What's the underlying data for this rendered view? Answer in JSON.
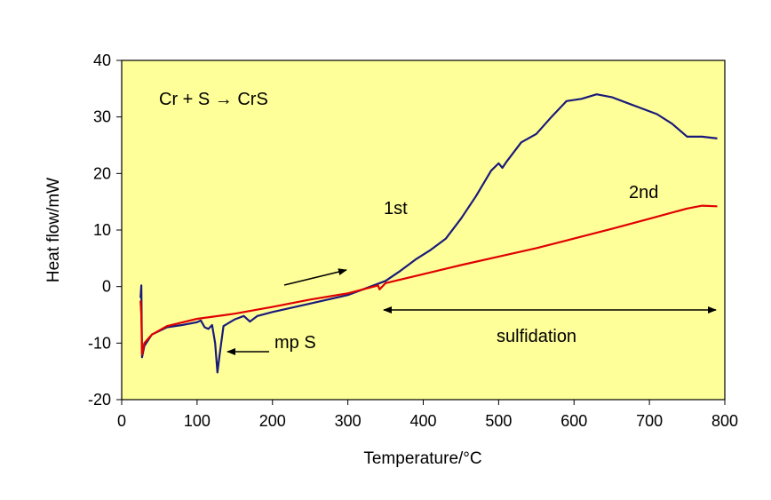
{
  "chart_data": {
    "type": "line",
    "title": "",
    "xlabel": "Temperature/°C",
    "ylabel": "Heat flow/mW",
    "xlim": [
      0,
      800
    ],
    "ylim": [
      -20,
      40
    ],
    "x_ticks": [
      "0",
      "100",
      "200",
      "300",
      "400",
      "500",
      "600",
      "700",
      "800"
    ],
    "y_ticks": [
      "-20",
      "-10",
      "0",
      "10",
      "20",
      "30",
      "40"
    ],
    "grid": false,
    "legend": "none",
    "plot_background": "#FFFF99",
    "series": [
      {
        "label": "1st",
        "color": "#1a1a7a",
        "points": [
          [
            25,
            -2
          ],
          [
            26,
            0.2
          ],
          [
            27,
            -12.5
          ],
          [
            30,
            -10.5
          ],
          [
            40,
            -8.5
          ],
          [
            60,
            -7.2
          ],
          [
            80,
            -6.8
          ],
          [
            100,
            -6.3
          ],
          [
            105,
            -6.0
          ],
          [
            110,
            -7.2
          ],
          [
            115,
            -7.5
          ],
          [
            120,
            -6.8
          ],
          [
            124,
            -10
          ],
          [
            127,
            -15.2
          ],
          [
            130,
            -12
          ],
          [
            135,
            -7
          ],
          [
            150,
            -5.8
          ],
          [
            162,
            -5.2
          ],
          [
            170,
            -6.2
          ],
          [
            180,
            -5.2
          ],
          [
            200,
            -4.5
          ],
          [
            250,
            -3.0
          ],
          [
            300,
            -1.5
          ],
          [
            330,
            0
          ],
          [
            350,
            1.0
          ],
          [
            370,
            2.8
          ],
          [
            390,
            4.8
          ],
          [
            410,
            6.5
          ],
          [
            430,
            8.5
          ],
          [
            450,
            12
          ],
          [
            470,
            16
          ],
          [
            490,
            20.5
          ],
          [
            500,
            21.8
          ],
          [
            505,
            21
          ],
          [
            510,
            22
          ],
          [
            530,
            25.5
          ],
          [
            550,
            27
          ],
          [
            570,
            30
          ],
          [
            590,
            32.8
          ],
          [
            610,
            33.2
          ],
          [
            630,
            34.0
          ],
          [
            650,
            33.5
          ],
          [
            670,
            32.5
          ],
          [
            690,
            31.5
          ],
          [
            710,
            30.5
          ],
          [
            730,
            28.8
          ],
          [
            750,
            26.5
          ],
          [
            770,
            26.5
          ],
          [
            790,
            26.2
          ]
        ]
      },
      {
        "label": "2nd",
        "color": "#e00000",
        "points": [
          [
            25,
            -2.5
          ],
          [
            26,
            -5
          ],
          [
            27,
            -12
          ],
          [
            30,
            -10
          ],
          [
            40,
            -8.5
          ],
          [
            60,
            -7.0
          ],
          [
            100,
            -5.7
          ],
          [
            150,
            -4.8
          ],
          [
            200,
            -3.6
          ],
          [
            250,
            -2.3
          ],
          [
            300,
            -1.2
          ],
          [
            340,
            0.2
          ],
          [
            342,
            -0.5
          ],
          [
            350,
            0.6
          ],
          [
            400,
            2.2
          ],
          [
            450,
            3.8
          ],
          [
            500,
            5.3
          ],
          [
            550,
            6.8
          ],
          [
            600,
            8.5
          ],
          [
            650,
            10.2
          ],
          [
            700,
            12.0
          ],
          [
            750,
            13.8
          ],
          [
            770,
            14.3
          ],
          [
            790,
            14.2
          ]
        ]
      }
    ],
    "annotations": {
      "reaction": "Cr + S → CrS",
      "first_run": "1st",
      "second_run": "2nd",
      "melting_point": "mp S",
      "region": "sulfidation"
    }
  }
}
